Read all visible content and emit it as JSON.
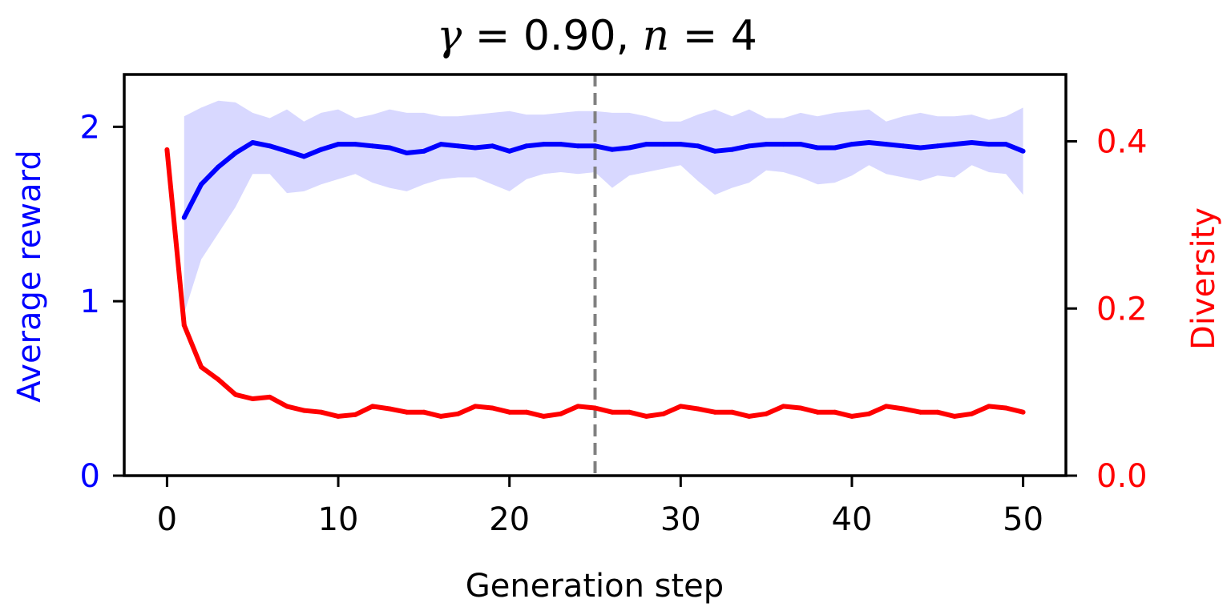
{
  "chart_data": {
    "type": "line",
    "title": {
      "gamma_symbol": "γ",
      "gamma_value": "= 0.90,",
      "n_symbol": "n",
      "n_value": "= 4"
    },
    "xlabel": "Generation step",
    "ylabel_left": "Average reward",
    "ylabel_right": "Diversity",
    "xlim": [
      -2.5,
      52.5
    ],
    "ylim_left": [
      0,
      2.3
    ],
    "ylim_right": [
      0,
      0.48
    ],
    "x_ticks": [
      0,
      10,
      20,
      30,
      40,
      50
    ],
    "x_tick_labels": [
      "0",
      "10",
      "20",
      "30",
      "40",
      "50"
    ],
    "y_left_ticks": [
      0,
      1,
      2
    ],
    "y_left_tick_labels": [
      "0",
      "1",
      "2"
    ],
    "y_right_ticks": [
      0.0,
      0.2,
      0.4
    ],
    "y_right_tick_labels": [
      "0.0",
      "0.2",
      "0.4"
    ],
    "vline_x": 25,
    "grid": false,
    "colors": {
      "reward": "#0000ff",
      "band": "#d8d8ff",
      "diversity": "#ff0000",
      "vline": "#808080"
    },
    "series": [
      {
        "axis": "left",
        "x": [
          1,
          2,
          3,
          4,
          5,
          6,
          7,
          8,
          9,
          10,
          11,
          12,
          13,
          14,
          15,
          16,
          17,
          18,
          19,
          20,
          21,
          22,
          23,
          24,
          25,
          26,
          27,
          28,
          29,
          30,
          31,
          32,
          33,
          34,
          35,
          36,
          37,
          38,
          39,
          40,
          41,
          42,
          43,
          44,
          45,
          46,
          47,
          48,
          49,
          50
        ],
        "values": [
          1.48,
          1.67,
          1.77,
          1.85,
          1.91,
          1.89,
          1.86,
          1.83,
          1.87,
          1.9,
          1.9,
          1.89,
          1.88,
          1.85,
          1.86,
          1.9,
          1.89,
          1.88,
          1.89,
          1.86,
          1.89,
          1.9,
          1.9,
          1.89,
          1.89,
          1.87,
          1.88,
          1.9,
          1.9,
          1.9,
          1.89,
          1.86,
          1.87,
          1.89,
          1.9,
          1.9,
          1.9,
          1.88,
          1.88,
          1.9,
          1.91,
          1.9,
          1.89,
          1.88,
          1.89,
          1.9,
          1.91,
          1.9,
          1.9,
          1.86
        ],
        "upper": [
          2.06,
          2.11,
          2.15,
          2.14,
          2.08,
          2.05,
          2.1,
          2.03,
          2.08,
          2.1,
          2.05,
          2.07,
          2.1,
          2.08,
          2.08,
          2.06,
          2.06,
          2.07,
          2.08,
          2.09,
          2.07,
          2.07,
          2.08,
          2.09,
          2.09,
          2.08,
          2.08,
          2.06,
          2.03,
          2.03,
          2.07,
          2.1,
          2.06,
          2.1,
          2.05,
          2.05,
          2.08,
          2.06,
          2.08,
          2.09,
          2.1,
          2.03,
          2.06,
          2.08,
          2.06,
          2.06,
          2.07,
          2.04,
          2.06,
          2.11
        ],
        "lower": [
          0.93,
          1.24,
          1.39,
          1.54,
          1.73,
          1.73,
          1.62,
          1.63,
          1.67,
          1.7,
          1.73,
          1.68,
          1.65,
          1.63,
          1.67,
          1.7,
          1.71,
          1.71,
          1.67,
          1.63,
          1.7,
          1.73,
          1.74,
          1.73,
          1.74,
          1.65,
          1.72,
          1.74,
          1.76,
          1.78,
          1.69,
          1.61,
          1.65,
          1.68,
          1.75,
          1.74,
          1.71,
          1.67,
          1.68,
          1.72,
          1.78,
          1.73,
          1.71,
          1.69,
          1.72,
          1.71,
          1.78,
          1.74,
          1.73,
          1.61
        ]
      },
      {
        "axis": "right",
        "x": [
          0,
          1,
          2,
          3,
          4,
          5,
          6,
          7,
          8,
          9,
          10,
          11,
          12,
          13,
          14,
          15,
          16,
          17,
          18,
          19,
          20,
          21,
          22,
          23,
          24,
          25,
          26,
          27,
          28,
          29,
          30,
          31,
          32,
          33,
          34,
          35,
          36,
          37,
          38,
          39,
          40,
          41,
          42,
          43,
          44,
          45,
          46,
          47,
          48,
          49,
          50
        ],
        "values": [
          0.39,
          0.18,
          0.13,
          0.115,
          0.097,
          0.092,
          0.094,
          0.083,
          0.078,
          0.076,
          0.071,
          0.073,
          0.083,
          0.08,
          0.076,
          0.076,
          0.071,
          0.074,
          0.083,
          0.081,
          0.076,
          0.076,
          0.071,
          0.074,
          0.083,
          0.081,
          0.076,
          0.076,
          0.071,
          0.074,
          0.083,
          0.08,
          0.076,
          0.076,
          0.071,
          0.074,
          0.083,
          0.081,
          0.076,
          0.076,
          0.071,
          0.074,
          0.083,
          0.08,
          0.076,
          0.076,
          0.071,
          0.074,
          0.083,
          0.081,
          0.076
        ]
      }
    ]
  }
}
